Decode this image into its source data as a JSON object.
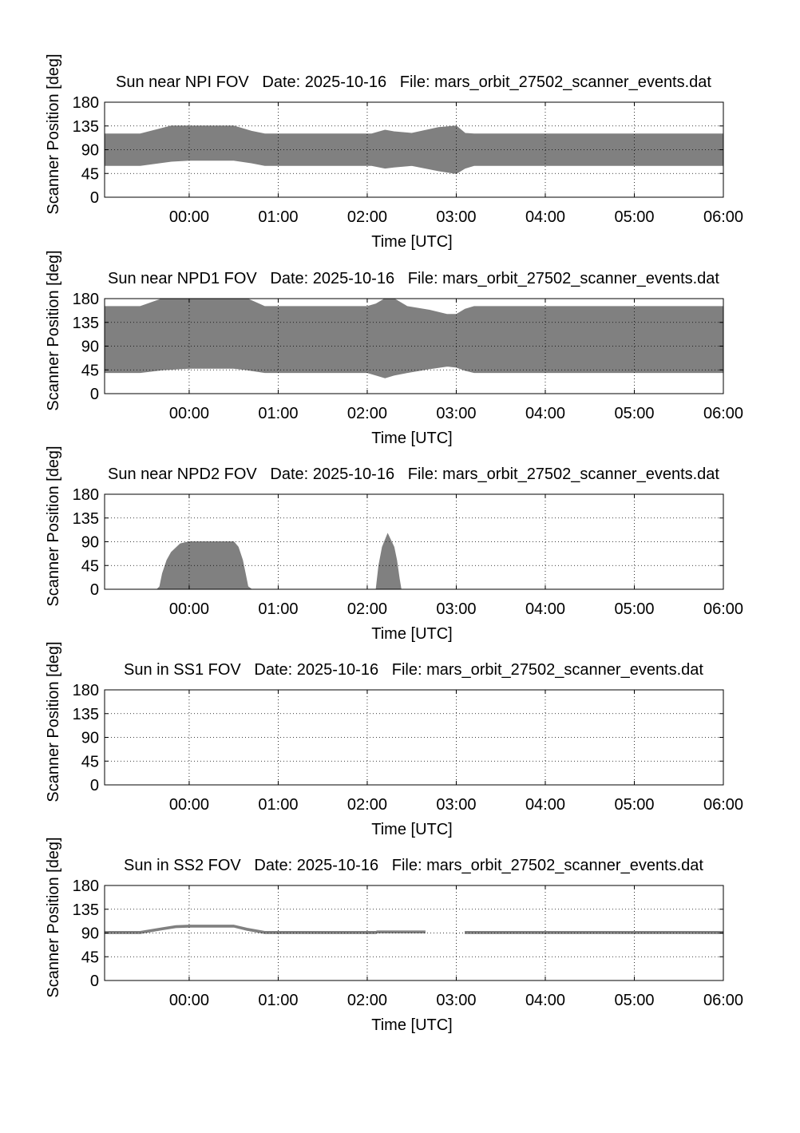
{
  "chart_data": [
    {
      "type": "area",
      "title": "Sun near NPI FOV   Date: 2025-10-16   File: mars_orbit_27502_scanner_events.dat",
      "xlabel": "Time [UTC]",
      "ylabel": "Scanner Position [deg]",
      "x_ticks": [
        "00:00",
        "01:00",
        "02:00",
        "03:00",
        "04:00",
        "05:00",
        "06:00"
      ],
      "y_ticks": [
        "0",
        "45",
        "90",
        "135",
        "180"
      ],
      "xlim_hours": [
        -0.95,
        6.0
      ],
      "ylim": [
        0,
        180
      ],
      "grid": true,
      "fill_color": "#808080",
      "x_hours": [
        -0.95,
        -0.55,
        -0.2,
        0.0,
        0.5,
        0.7,
        0.85,
        2.05,
        2.2,
        2.3,
        2.5,
        2.8,
        3.0,
        3.1,
        3.2,
        6.0
      ],
      "upper": [
        120,
        120,
        135,
        135,
        135,
        125,
        120,
        120,
        127,
        124,
        121,
        132,
        135,
        121,
        120,
        120
      ],
      "lower": [
        60,
        60,
        68,
        70,
        70,
        65,
        60,
        60,
        55,
        57,
        60,
        50,
        45,
        55,
        60,
        60
      ],
      "segments": [
        [
          0,
          15
        ]
      ]
    },
    {
      "type": "area",
      "title": "Sun near NPD1 FOV   Date: 2025-10-16   File: mars_orbit_27502_scanner_events.dat",
      "xlabel": "Time [UTC]",
      "ylabel": "Scanner Position [deg]",
      "x_ticks": [
        "00:00",
        "01:00",
        "02:00",
        "03:00",
        "04:00",
        "05:00",
        "06:00"
      ],
      "y_ticks": [
        "0",
        "45",
        "90",
        "135",
        "180"
      ],
      "xlim_hours": [
        -0.95,
        6.0
      ],
      "ylim": [
        0,
        180
      ],
      "grid": true,
      "fill_color": "#808080",
      "x_hours": [
        -0.95,
        -0.55,
        -0.3,
        0.0,
        0.5,
        0.65,
        0.85,
        2.0,
        2.1,
        2.2,
        2.3,
        2.45,
        2.7,
        2.9,
        3.0,
        3.1,
        3.2,
        6.0
      ],
      "upper": [
        165,
        165,
        180,
        180,
        180,
        180,
        165,
        165,
        170,
        180,
        180,
        165,
        158,
        150,
        150,
        160,
        165,
        165
      ],
      "lower": [
        40,
        40,
        45,
        48,
        48,
        45,
        40,
        40,
        35,
        30,
        35,
        40,
        47,
        52,
        50,
        44,
        40,
        40
      ],
      "segments": [
        [
          0,
          17
        ]
      ]
    },
    {
      "type": "area",
      "title": "Sun near NPD2 FOV   Date: 2025-10-16   File: mars_orbit_27502_scanner_events.dat",
      "xlabel": "Time [UTC]",
      "ylabel": "Scanner Position [deg]",
      "x_ticks": [
        "00:00",
        "01:00",
        "02:00",
        "03:00",
        "04:00",
        "05:00",
        "06:00"
      ],
      "y_ticks": [
        "0",
        "45",
        "90",
        "135",
        "180"
      ],
      "xlim_hours": [
        -0.95,
        6.0
      ],
      "ylim": [
        0,
        180
      ],
      "grid": true,
      "fill_color": "#808080",
      "x_hours": [
        -0.95,
        -0.36,
        -0.33,
        -0.3,
        -0.25,
        -0.2,
        -0.1,
        0.0,
        0.5,
        0.55,
        0.6,
        0.63,
        0.66,
        0.7,
        2.1,
        2.13,
        2.17,
        2.23,
        2.3,
        2.33,
        2.36,
        2.38,
        6.0
      ],
      "upper": [
        0,
        0,
        5,
        30,
        55,
        70,
        86,
        90,
        90,
        80,
        55,
        30,
        5,
        0,
        0,
        45,
        80,
        105,
        80,
        55,
        20,
        0,
        0
      ],
      "lower": [
        0,
        0,
        0,
        0,
        0,
        0,
        0,
        0,
        0,
        0,
        0,
        0,
        0,
        0,
        0,
        0,
        0,
        0,
        0,
        0,
        0,
        0,
        0
      ],
      "segments": [
        [
          0,
          22
        ]
      ]
    },
    {
      "type": "area",
      "title": "Sun in SS1 FOV   Date: 2025-10-16   File: mars_orbit_27502_scanner_events.dat",
      "xlabel": "Time [UTC]",
      "ylabel": "Scanner Position [deg]",
      "x_ticks": [
        "00:00",
        "01:00",
        "02:00",
        "03:00",
        "04:00",
        "05:00",
        "06:00"
      ],
      "y_ticks": [
        "0",
        "45",
        "90",
        "135",
        "180"
      ],
      "xlim_hours": [
        -0.95,
        6.0
      ],
      "ylim": [
        0,
        180
      ],
      "grid": true,
      "fill_color": "#808080",
      "x_hours": [],
      "upper": [],
      "lower": [],
      "segments": []
    },
    {
      "type": "area",
      "title": "Sun in SS2 FOV   Date: 2025-10-16   File: mars_orbit_27502_scanner_events.dat",
      "xlabel": "Time [UTC]",
      "ylabel": "Scanner Position [deg]",
      "x_ticks": [
        "00:00",
        "01:00",
        "02:00",
        "03:00",
        "04:00",
        "05:00",
        "06:00"
      ],
      "y_ticks": [
        "0",
        "45",
        "90",
        "135",
        "180"
      ],
      "xlim_hours": [
        -0.95,
        6.0
      ],
      "ylim": [
        0,
        180
      ],
      "grid": true,
      "fill_color": "#808080",
      "x_hours": [
        -0.95,
        -0.55,
        -0.3,
        -0.15,
        0.0,
        0.5,
        0.65,
        0.85,
        2.1,
        2.11,
        2.65,
        3.1,
        6.0
      ],
      "upper": [
        93,
        93,
        100,
        104,
        105,
        105,
        99,
        93,
        93,
        94,
        94,
        93,
        93
      ],
      "lower": [
        89,
        89,
        96,
        100,
        101,
        101,
        95,
        89,
        89,
        90,
        90,
        89,
        89
      ],
      "segments": [
        [
          0,
          10
        ],
        [
          11,
          12
        ]
      ]
    }
  ]
}
